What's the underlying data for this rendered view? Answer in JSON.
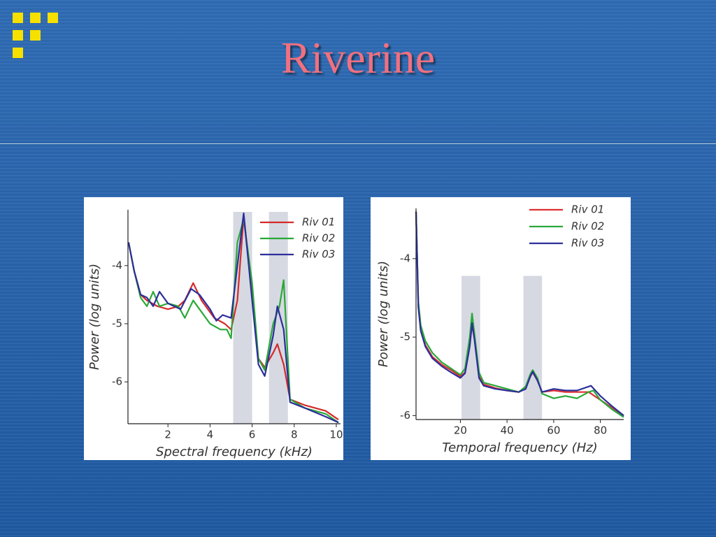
{
  "slide": {
    "title": "Riverine"
  },
  "chart_data": [
    {
      "type": "line",
      "xlabel": "Spectral frequency (kHz)",
      "ylabel": "Power (log units)",
      "xlim": [
        0.1,
        10.2
      ],
      "ylim": [
        -6.72,
        -3.04
      ],
      "xticks": [
        2,
        4,
        6,
        8,
        10
      ],
      "yticks": [
        -4,
        -5,
        -6
      ],
      "shaded_regions": [
        [
          5.1,
          6.0
        ],
        [
          6.8,
          7.7
        ]
      ],
      "legend": "upper right",
      "series": [
        {
          "name": "Riv 01",
          "color": "#d42a2a",
          "x": [
            0.13,
            0.4,
            0.7,
            1.0,
            1.5,
            2.0,
            2.5,
            2.8,
            3.2,
            3.6,
            4.2,
            4.7,
            5.0,
            5.3,
            5.6,
            6.0,
            6.3,
            6.6,
            7.0,
            7.2,
            7.5,
            7.8,
            8.5,
            9.5,
            10.1
          ],
          "values": [
            -3.6,
            -4.1,
            -4.5,
            -4.6,
            -4.7,
            -4.75,
            -4.7,
            -4.6,
            -4.3,
            -4.6,
            -4.9,
            -5.0,
            -5.1,
            -4.6,
            -3.15,
            -4.5,
            -5.6,
            -5.75,
            -5.5,
            -5.35,
            -5.7,
            -6.3,
            -6.4,
            -6.5,
            -6.65
          ]
        },
        {
          "name": "Riv 02",
          "color": "#2aa838",
          "x": [
            0.13,
            0.4,
            0.7,
            1.0,
            1.3,
            1.6,
            2.0,
            2.5,
            2.8,
            3.2,
            3.6,
            4.0,
            4.5,
            4.8,
            5.0,
            5.3,
            5.6,
            6.0,
            6.3,
            6.6,
            7.0,
            7.3,
            7.5,
            7.8,
            8.5,
            9.5,
            10.1
          ],
          "values": [
            -3.6,
            -4.1,
            -4.55,
            -4.7,
            -4.45,
            -4.7,
            -4.65,
            -4.7,
            -4.9,
            -4.6,
            -4.8,
            -5.0,
            -5.1,
            -5.1,
            -5.25,
            -3.6,
            -3.2,
            -4.3,
            -5.6,
            -5.8,
            -5.0,
            -4.7,
            -4.25,
            -6.3,
            -6.45,
            -6.55,
            -6.7
          ]
        },
        {
          "name": "Riv 03",
          "color": "#2c2f9a",
          "x": [
            0.13,
            0.4,
            0.7,
            1.0,
            1.3,
            1.6,
            2.0,
            2.6,
            3.1,
            3.5,
            4.0,
            4.3,
            4.6,
            5.0,
            5.3,
            5.6,
            6.0,
            6.3,
            6.6,
            7.0,
            7.2,
            7.5,
            7.8,
            8.5,
            9.5,
            10.1
          ],
          "values": [
            -3.6,
            -4.1,
            -4.5,
            -4.55,
            -4.7,
            -4.45,
            -4.65,
            -4.75,
            -4.4,
            -4.5,
            -4.75,
            -4.95,
            -4.85,
            -4.9,
            -4.0,
            -3.1,
            -4.6,
            -5.7,
            -5.9,
            -5.2,
            -4.7,
            -5.1,
            -6.35,
            -6.45,
            -6.6,
            -6.7
          ]
        }
      ]
    },
    {
      "type": "line",
      "xlabel": "Temporal frequency (Hz)",
      "ylabel": "Power (log units)",
      "xlim": [
        1,
        90
      ],
      "ylim": [
        -6.05,
        -3.36
      ],
      "xticks": [
        20,
        40,
        60,
        80
      ],
      "yticks": [
        -4,
        -5,
        -6
      ],
      "shaded_regions": [
        [
          20.5,
          28.5
        ],
        [
          47,
          55
        ]
      ],
      "shade_top": -4.22,
      "legend": "upper right",
      "series": [
        {
          "name": "Riv 01",
          "color": "#e03030",
          "x": [
            1,
            2,
            3,
            5,
            8,
            12,
            16,
            20,
            22,
            24,
            25,
            26,
            28,
            30,
            35,
            40,
            45,
            48,
            50,
            51,
            53,
            55,
            60,
            65,
            70,
            75,
            80,
            85,
            90
          ],
          "values": [
            -3.4,
            -4.6,
            -4.9,
            -5.1,
            -5.25,
            -5.35,
            -5.42,
            -5.5,
            -5.45,
            -5.1,
            -4.85,
            -5.0,
            -5.5,
            -5.6,
            -5.65,
            -5.68,
            -5.7,
            -5.65,
            -5.5,
            -5.45,
            -5.55,
            -5.7,
            -5.68,
            -5.7,
            -5.7,
            -5.7,
            -5.8,
            -5.9,
            -6.0
          ]
        },
        {
          "name": "Riv 02",
          "color": "#2aa838",
          "x": [
            1,
            2,
            3,
            5,
            8,
            12,
            16,
            20,
            22,
            24,
            25,
            26,
            28,
            30,
            35,
            40,
            45,
            48,
            50,
            51,
            53,
            55,
            60,
            65,
            70,
            75,
            77,
            80,
            85,
            90
          ],
          "values": [
            -3.4,
            -4.55,
            -4.85,
            -5.05,
            -5.2,
            -5.32,
            -5.4,
            -5.48,
            -5.4,
            -5.0,
            -4.7,
            -4.95,
            -5.45,
            -5.58,
            -5.62,
            -5.66,
            -5.7,
            -5.63,
            -5.47,
            -5.42,
            -5.52,
            -5.72,
            -5.78,
            -5.75,
            -5.78,
            -5.7,
            -5.68,
            -5.8,
            -5.92,
            -6.02
          ]
        },
        {
          "name": "Riv 03",
          "color": "#2c2f9a",
          "x": [
            1,
            2,
            3,
            5,
            8,
            12,
            16,
            20,
            22,
            24,
            25,
            26,
            28,
            30,
            35,
            40,
            45,
            48,
            50,
            51,
            53,
            55,
            60,
            65,
            70,
            76,
            80,
            85,
            90
          ],
          "values": [
            -3.4,
            -4.62,
            -4.92,
            -5.12,
            -5.27,
            -5.37,
            -5.45,
            -5.52,
            -5.46,
            -5.12,
            -4.82,
            -5.02,
            -5.52,
            -5.62,
            -5.66,
            -5.68,
            -5.7,
            -5.66,
            -5.5,
            -5.44,
            -5.55,
            -5.7,
            -5.66,
            -5.68,
            -5.68,
            -5.62,
            -5.75,
            -5.88,
            -6.0
          ]
        }
      ]
    }
  ]
}
